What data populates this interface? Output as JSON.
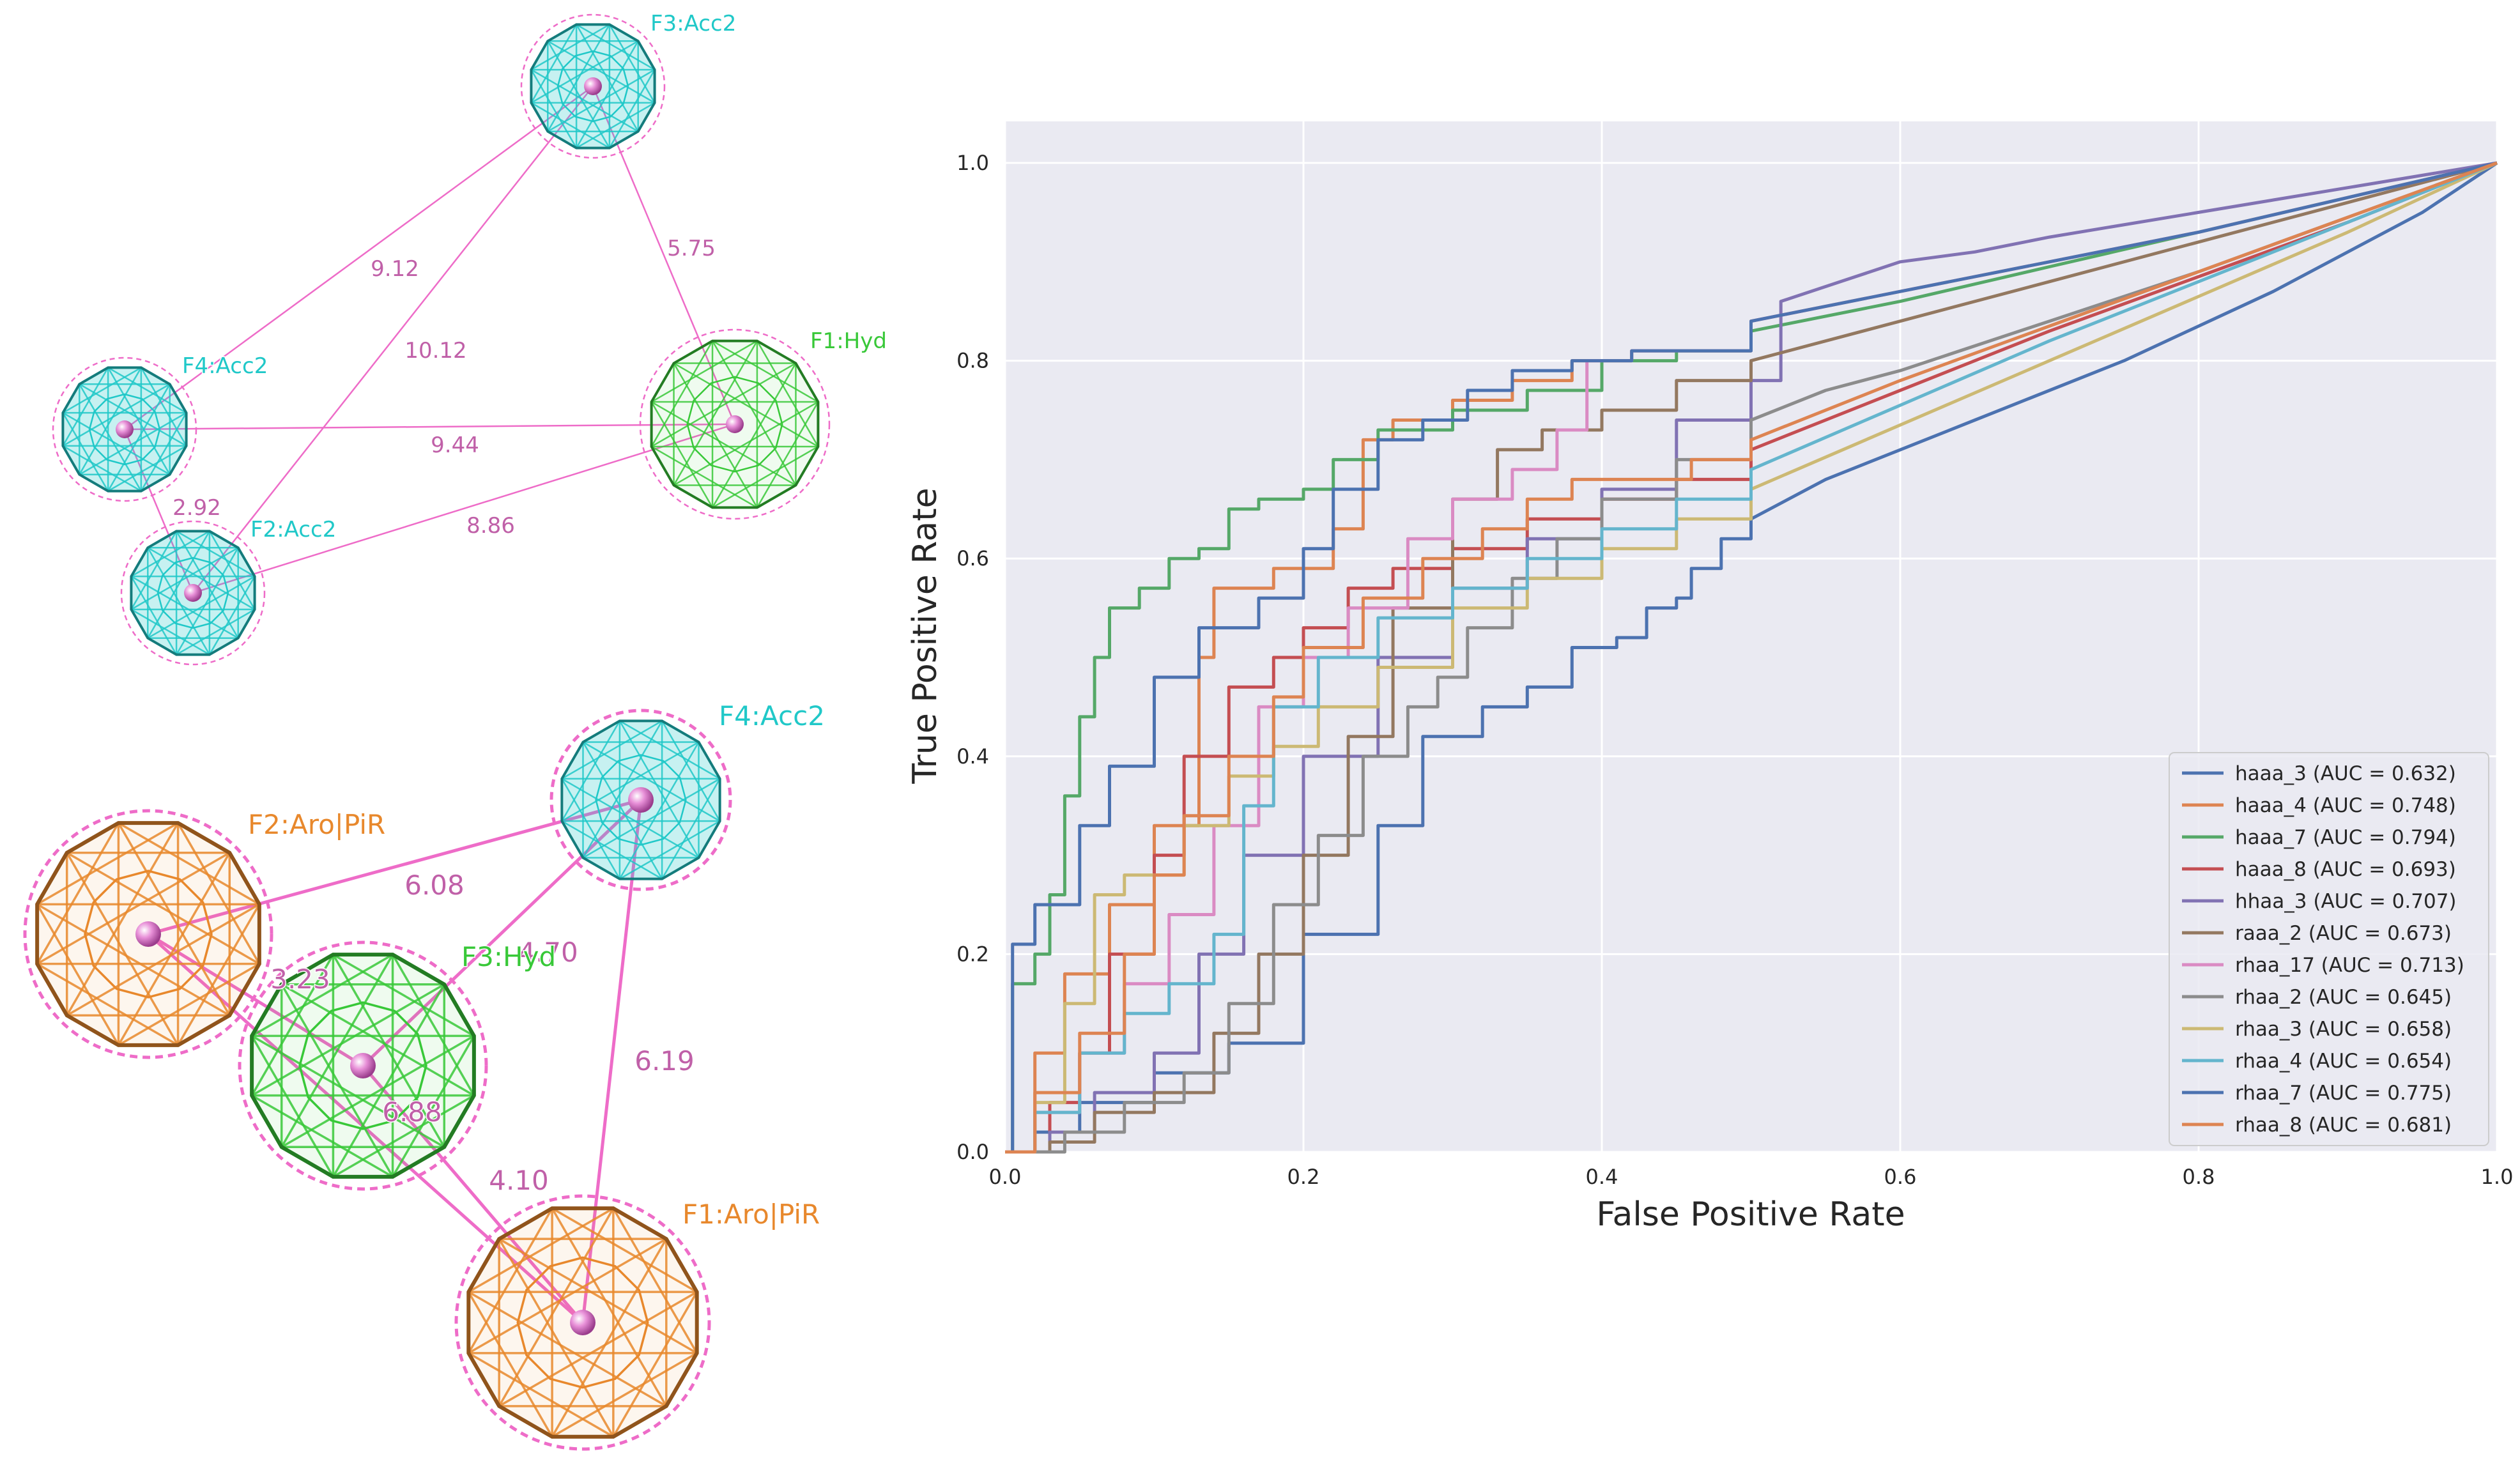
{
  "pharmacophores": [
    {
      "features": [
        {
          "id": "F1",
          "label": "F1:Hyd",
          "kind": "hyd",
          "color": "#38c838"
        },
        {
          "id": "F2",
          "label": "F2:Acc2",
          "kind": "acc",
          "color": "#20c8c8"
        },
        {
          "id": "F3",
          "label": "F3:Acc2",
          "kind": "acc",
          "color": "#20c8c8"
        },
        {
          "id": "F4",
          "label": "F4:Acc2",
          "kind": "acc",
          "color": "#20c8c8"
        }
      ],
      "distances": [
        {
          "from": "F3",
          "to": "F1",
          "value": "5.75"
        },
        {
          "from": "F3",
          "to": "F4",
          "value": "9.12"
        },
        {
          "from": "F3",
          "to": "F2",
          "value": "10.12"
        },
        {
          "from": "F4",
          "to": "F1",
          "value": "9.44"
        },
        {
          "from": "F4",
          "to": "F2",
          "value": "2.92"
        },
        {
          "from": "F2",
          "to": "F1",
          "value": "8.86"
        }
      ]
    },
    {
      "features": [
        {
          "id": "F1",
          "label": "F1:Aro|PiR",
          "kind": "aro",
          "color": "#e8882c"
        },
        {
          "id": "F2",
          "label": "F2:Aro|PiR",
          "kind": "aro",
          "color": "#e8882c"
        },
        {
          "id": "F3",
          "label": "F3:Hyd",
          "kind": "hyd",
          "color": "#38c838"
        },
        {
          "id": "F4",
          "label": "F4:Acc2",
          "kind": "acc",
          "color": "#20c8c8"
        }
      ],
      "distances": [
        {
          "from": "F2",
          "to": "F4",
          "value": "6.08"
        },
        {
          "from": "F3",
          "to": "F4",
          "value": "4.70"
        },
        {
          "from": "F2",
          "to": "F3",
          "value": "3.23"
        },
        {
          "from": "F4",
          "to": "F1",
          "value": "6.19"
        },
        {
          "from": "F2",
          "to": "F1",
          "value": "6.88"
        },
        {
          "from": "F3",
          "to": "F1",
          "value": "4.10"
        }
      ]
    }
  ],
  "chart_data": {
    "type": "line",
    "title": "",
    "xlabel": "False Positive Rate",
    "ylabel": "True Positive Rate",
    "xlim": [
      0,
      1
    ],
    "ylim": [
      0,
      1
    ],
    "xticks": [
      "0.0",
      "0.2",
      "0.4",
      "0.6",
      "0.8",
      "1.0"
    ],
    "yticks": [
      "0.0",
      "0.2",
      "0.4",
      "0.6",
      "0.8",
      "1.0"
    ],
    "grid": true,
    "legend_position": "lower-right",
    "series": [
      {
        "name": "haaa_3 (AUC = 0.632)",
        "color": "#4c72b0",
        "points": [
          [
            0,
            0
          ],
          [
            0.02,
            0.02
          ],
          [
            0.05,
            0.05
          ],
          [
            0.1,
            0.08
          ],
          [
            0.15,
            0.11
          ],
          [
            0.2,
            0.22
          ],
          [
            0.25,
            0.33
          ],
          [
            0.28,
            0.42
          ],
          [
            0.32,
            0.45
          ],
          [
            0.35,
            0.47
          ],
          [
            0.38,
            0.51
          ],
          [
            0.41,
            0.52
          ],
          [
            0.43,
            0.55
          ],
          [
            0.45,
            0.56
          ],
          [
            0.46,
            0.59
          ],
          [
            0.48,
            0.62
          ],
          [
            0.5,
            0.64
          ],
          [
            0.55,
            0.68
          ],
          [
            0.65,
            0.74
          ],
          [
            0.75,
            0.8
          ],
          [
            0.85,
            0.87
          ],
          [
            0.95,
            0.95
          ],
          [
            1,
            1
          ]
        ]
      },
      {
        "name": "haaa_4 (AUC = 0.748)",
        "color": "#dd8452",
        "points": [
          [
            0,
            0
          ],
          [
            0.02,
            0.1
          ],
          [
            0.04,
            0.18
          ],
          [
            0.07,
            0.25
          ],
          [
            0.1,
            0.33
          ],
          [
            0.13,
            0.5
          ],
          [
            0.14,
            0.57
          ],
          [
            0.18,
            0.59
          ],
          [
            0.22,
            0.63
          ],
          [
            0.24,
            0.72
          ],
          [
            0.26,
            0.74
          ],
          [
            0.3,
            0.76
          ],
          [
            0.34,
            0.78
          ],
          [
            0.38,
            0.8
          ],
          [
            0.42,
            0.81
          ],
          [
            0.5,
            0.84
          ],
          [
            0.6,
            0.87
          ],
          [
            0.7,
            0.9
          ],
          [
            0.8,
            0.93
          ],
          [
            0.9,
            0.965
          ],
          [
            1,
            1
          ]
        ]
      },
      {
        "name": "haaa_7 (AUC = 0.794)",
        "color": "#55a868",
        "points": [
          [
            0,
            0
          ],
          [
            0.005,
            0.17
          ],
          [
            0.02,
            0.2
          ],
          [
            0.03,
            0.26
          ],
          [
            0.04,
            0.36
          ],
          [
            0.05,
            0.44
          ],
          [
            0.06,
            0.5
          ],
          [
            0.07,
            0.55
          ],
          [
            0.09,
            0.57
          ],
          [
            0.11,
            0.6
          ],
          [
            0.13,
            0.61
          ],
          [
            0.15,
            0.65
          ],
          [
            0.17,
            0.66
          ],
          [
            0.2,
            0.67
          ],
          [
            0.22,
            0.7
          ],
          [
            0.25,
            0.73
          ],
          [
            0.3,
            0.75
          ],
          [
            0.35,
            0.77
          ],
          [
            0.4,
            0.8
          ],
          [
            0.45,
            0.81
          ],
          [
            0.5,
            0.83
          ],
          [
            0.6,
            0.86
          ],
          [
            0.7,
            0.895
          ],
          [
            0.8,
            0.93
          ],
          [
            0.9,
            0.965
          ],
          [
            1,
            1
          ]
        ]
      },
      {
        "name": "haaa_8 (AUC = 0.693)",
        "color": "#c44e52",
        "points": [
          [
            0,
            0
          ],
          [
            0.03,
            0.05
          ],
          [
            0.05,
            0.1
          ],
          [
            0.07,
            0.2
          ],
          [
            0.1,
            0.3
          ],
          [
            0.12,
            0.4
          ],
          [
            0.15,
            0.47
          ],
          [
            0.18,
            0.5
          ],
          [
            0.2,
            0.53
          ],
          [
            0.23,
            0.57
          ],
          [
            0.26,
            0.59
          ],
          [
            0.3,
            0.61
          ],
          [
            0.35,
            0.64
          ],
          [
            0.4,
            0.66
          ],
          [
            0.45,
            0.68
          ],
          [
            0.5,
            0.71
          ],
          [
            0.6,
            0.77
          ],
          [
            0.7,
            0.83
          ],
          [
            0.8,
            0.885
          ],
          [
            0.9,
            0.94
          ],
          [
            1,
            1
          ]
        ]
      },
      {
        "name": "hhaa_3 (AUC = 0.707)",
        "color": "#8172b3",
        "points": [
          [
            0,
            0
          ],
          [
            0.03,
            0.02
          ],
          [
            0.06,
            0.06
          ],
          [
            0.1,
            0.1
          ],
          [
            0.13,
            0.2
          ],
          [
            0.16,
            0.3
          ],
          [
            0.2,
            0.4
          ],
          [
            0.25,
            0.5
          ],
          [
            0.3,
            0.57
          ],
          [
            0.35,
            0.62
          ],
          [
            0.4,
            0.67
          ],
          [
            0.45,
            0.74
          ],
          [
            0.5,
            0.78
          ],
          [
            0.52,
            0.86
          ],
          [
            0.56,
            0.88
          ],
          [
            0.6,
            0.9
          ],
          [
            0.65,
            0.91
          ],
          [
            0.7,
            0.925
          ],
          [
            0.8,
            0.95
          ],
          [
            0.9,
            0.975
          ],
          [
            1,
            1
          ]
        ]
      },
      {
        "name": "raaa_2 (AUC = 0.673)",
        "color": "#937860",
        "points": [
          [
            0,
            0
          ],
          [
            0.03,
            0.01
          ],
          [
            0.06,
            0.04
          ],
          [
            0.1,
            0.06
          ],
          [
            0.14,
            0.12
          ],
          [
            0.17,
            0.2
          ],
          [
            0.2,
            0.3
          ],
          [
            0.23,
            0.42
          ],
          [
            0.26,
            0.55
          ],
          [
            0.3,
            0.66
          ],
          [
            0.33,
            0.71
          ],
          [
            0.36,
            0.73
          ],
          [
            0.4,
            0.75
          ],
          [
            0.45,
            0.78
          ],
          [
            0.5,
            0.8
          ],
          [
            0.6,
            0.84
          ],
          [
            0.7,
            0.88
          ],
          [
            0.8,
            0.92
          ],
          [
            0.9,
            0.96
          ],
          [
            1,
            1
          ]
        ]
      },
      {
        "name": "rhaa_17 (AUC = 0.713)",
        "color": "#da8bc3",
        "points": [
          [
            0,
            0
          ],
          [
            0.02,
            0.04
          ],
          [
            0.05,
            0.1
          ],
          [
            0.08,
            0.17
          ],
          [
            0.11,
            0.24
          ],
          [
            0.14,
            0.33
          ],
          [
            0.17,
            0.45
          ],
          [
            0.2,
            0.5
          ],
          [
            0.23,
            0.55
          ],
          [
            0.27,
            0.62
          ],
          [
            0.3,
            0.66
          ],
          [
            0.34,
            0.69
          ],
          [
            0.37,
            0.73
          ],
          [
            0.39,
            0.8
          ],
          [
            0.42,
            0.81
          ],
          [
            0.5,
            0.84
          ],
          [
            0.6,
            0.87
          ],
          [
            0.7,
            0.9
          ],
          [
            0.8,
            0.93
          ],
          [
            0.9,
            0.965
          ],
          [
            1,
            1
          ]
        ]
      },
      {
        "name": "rhaa_2 (AUC = 0.645)",
        "color": "#8c8c8c",
        "points": [
          [
            0,
            0
          ],
          [
            0.04,
            0.02
          ],
          [
            0.08,
            0.05
          ],
          [
            0.12,
            0.08
          ],
          [
            0.15,
            0.15
          ],
          [
            0.18,
            0.25
          ],
          [
            0.21,
            0.32
          ],
          [
            0.24,
            0.4
          ],
          [
            0.27,
            0.45
          ],
          [
            0.29,
            0.48
          ],
          [
            0.31,
            0.53
          ],
          [
            0.34,
            0.58
          ],
          [
            0.37,
            0.62
          ],
          [
            0.4,
            0.66
          ],
          [
            0.45,
            0.7
          ],
          [
            0.5,
            0.74
          ],
          [
            0.55,
            0.77
          ],
          [
            0.6,
            0.79
          ],
          [
            0.7,
            0.84
          ],
          [
            0.8,
            0.89
          ],
          [
            0.9,
            0.945
          ],
          [
            1,
            1
          ]
        ]
      },
      {
        "name": "rhaa_3 (AUC = 0.658)",
        "color": "#ccb974",
        "points": [
          [
            0,
            0
          ],
          [
            0.02,
            0.05
          ],
          [
            0.04,
            0.15
          ],
          [
            0.06,
            0.26
          ],
          [
            0.08,
            0.28
          ],
          [
            0.12,
            0.33
          ],
          [
            0.15,
            0.38
          ],
          [
            0.18,
            0.41
          ],
          [
            0.21,
            0.45
          ],
          [
            0.25,
            0.49
          ],
          [
            0.3,
            0.55
          ],
          [
            0.35,
            0.58
          ],
          [
            0.4,
            0.61
          ],
          [
            0.45,
            0.64
          ],
          [
            0.5,
            0.67
          ],
          [
            0.6,
            0.735
          ],
          [
            0.7,
            0.8
          ],
          [
            0.8,
            0.865
          ],
          [
            0.9,
            0.93
          ],
          [
            1,
            1
          ]
        ]
      },
      {
        "name": "rhaa_4 (AUC = 0.654)",
        "color": "#64b5cd",
        "points": [
          [
            0,
            0
          ],
          [
            0.02,
            0.04
          ],
          [
            0.05,
            0.1
          ],
          [
            0.08,
            0.14
          ],
          [
            0.11,
            0.17
          ],
          [
            0.14,
            0.22
          ],
          [
            0.16,
            0.35
          ],
          [
            0.18,
            0.45
          ],
          [
            0.21,
            0.5
          ],
          [
            0.25,
            0.54
          ],
          [
            0.3,
            0.57
          ],
          [
            0.35,
            0.6
          ],
          [
            0.4,
            0.63
          ],
          [
            0.45,
            0.66
          ],
          [
            0.5,
            0.69
          ],
          [
            0.6,
            0.755
          ],
          [
            0.7,
            0.82
          ],
          [
            0.8,
            0.88
          ],
          [
            0.9,
            0.94
          ],
          [
            1,
            1
          ]
        ]
      },
      {
        "name": "rhaa_7 (AUC = 0.775)",
        "color": "#4c72b0",
        "points": [
          [
            0,
            0
          ],
          [
            0.005,
            0.21
          ],
          [
            0.02,
            0.25
          ],
          [
            0.05,
            0.33
          ],
          [
            0.07,
            0.39
          ],
          [
            0.1,
            0.48
          ],
          [
            0.13,
            0.53
          ],
          [
            0.17,
            0.56
          ],
          [
            0.2,
            0.61
          ],
          [
            0.22,
            0.67
          ],
          [
            0.25,
            0.72
          ],
          [
            0.28,
            0.74
          ],
          [
            0.31,
            0.77
          ],
          [
            0.34,
            0.79
          ],
          [
            0.38,
            0.8
          ],
          [
            0.42,
            0.81
          ],
          [
            0.5,
            0.84
          ],
          [
            0.6,
            0.87
          ],
          [
            0.7,
            0.9
          ],
          [
            0.8,
            0.93
          ],
          [
            0.9,
            0.965
          ],
          [
            1,
            1
          ]
        ]
      },
      {
        "name": "rhaa_8 (AUC = 0.681)",
        "color": "#dd8452",
        "points": [
          [
            0,
            0
          ],
          [
            0.02,
            0.06
          ],
          [
            0.05,
            0.12
          ],
          [
            0.08,
            0.2
          ],
          [
            0.1,
            0.28
          ],
          [
            0.12,
            0.34
          ],
          [
            0.15,
            0.4
          ],
          [
            0.18,
            0.46
          ],
          [
            0.2,
            0.51
          ],
          [
            0.24,
            0.56
          ],
          [
            0.28,
            0.6
          ],
          [
            0.32,
            0.63
          ],
          [
            0.35,
            0.66
          ],
          [
            0.38,
            0.68
          ],
          [
            0.42,
            0.68
          ],
          [
            0.46,
            0.7
          ],
          [
            0.5,
            0.72
          ],
          [
            0.6,
            0.78
          ],
          [
            0.7,
            0.835
          ],
          [
            0.8,
            0.89
          ],
          [
            0.9,
            0.945
          ],
          [
            1,
            1
          ]
        ]
      }
    ]
  }
}
